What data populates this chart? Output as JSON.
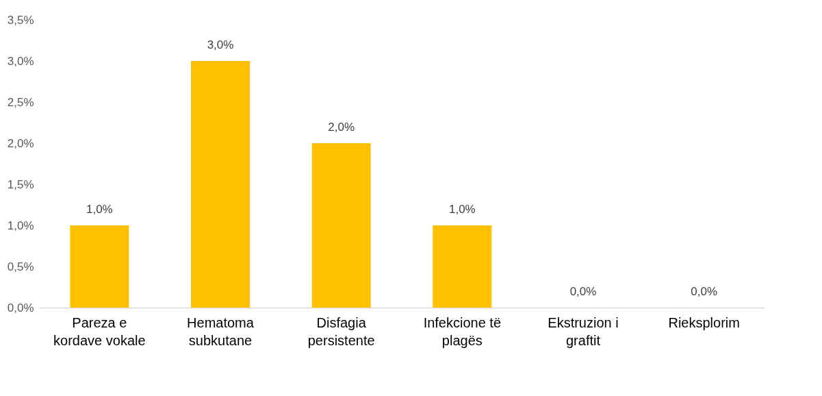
{
  "chart_data": {
    "type": "bar",
    "categories": [
      "Pareza e kordave vokale",
      "Hematoma subkutane",
      "Disfagia persistente",
      "Infekcione të plagës",
      "Ekstruzion i graftit",
      "Rieksplorim"
    ],
    "values": [
      1.0,
      3.0,
      2.0,
      1.0,
      0.0,
      0.0
    ],
    "value_labels": [
      "1,0%",
      "3,0%",
      "2,0%",
      "1,0%",
      "0,0%",
      "0,0%"
    ],
    "color": "#ffc000",
    "ylim": [
      0,
      3.5
    ],
    "yticks": [
      {
        "value": 0,
        "label": "0,0%"
      },
      {
        "value": 0.5,
        "label": "0,5%"
      },
      {
        "value": 1,
        "label": "1,0%"
      },
      {
        "value": 1.5,
        "label": "1,5%"
      },
      {
        "value": 2,
        "label": "2,0%"
      },
      {
        "value": 2.5,
        "label": "2,5%"
      },
      {
        "value": 3,
        "label": "3,0%"
      },
      {
        "value": 3.5,
        "label": "3,5%"
      }
    ],
    "grid": false
  }
}
